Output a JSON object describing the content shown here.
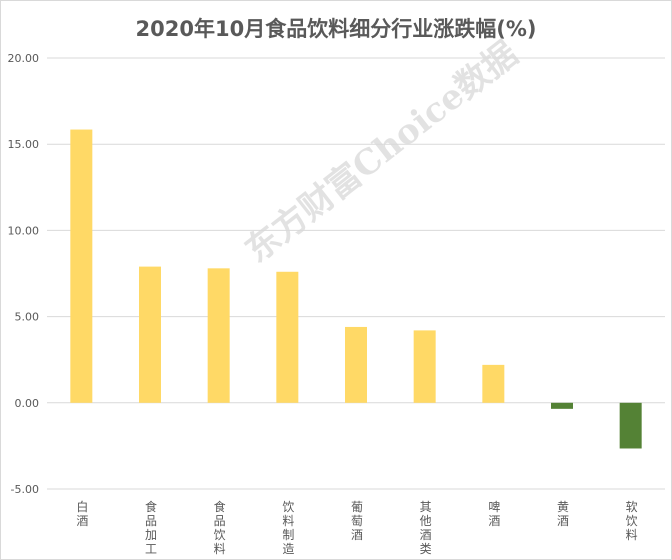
{
  "chart_data": {
    "type": "bar",
    "title": "2020年10月食品饮料细分行业涨跌幅(%)",
    "xlabel": "",
    "ylabel": "",
    "ylim": [
      -5,
      20
    ],
    "yticks": [
      -5,
      0,
      5,
      10,
      15,
      20
    ],
    "ytick_labels": [
      "-5.00",
      "0.00",
      "5.00",
      "10.00",
      "15.00",
      "20.00"
    ],
    "grid": true,
    "legend": "none",
    "categories": [
      "白酒",
      "食品加工",
      "食品饮料",
      "饮料制造",
      "葡萄酒",
      "其他酒类",
      "啤酒",
      "黄酒",
      "软饮料"
    ],
    "values": [
      15.85,
      7.9,
      7.8,
      7.6,
      4.4,
      4.2,
      2.2,
      -0.35,
      -2.65
    ],
    "positive_color": "#ffd966",
    "negative_color": "#548235",
    "gridline_color": "#d9d9d9"
  },
  "watermark": "东方财富Choice数据"
}
